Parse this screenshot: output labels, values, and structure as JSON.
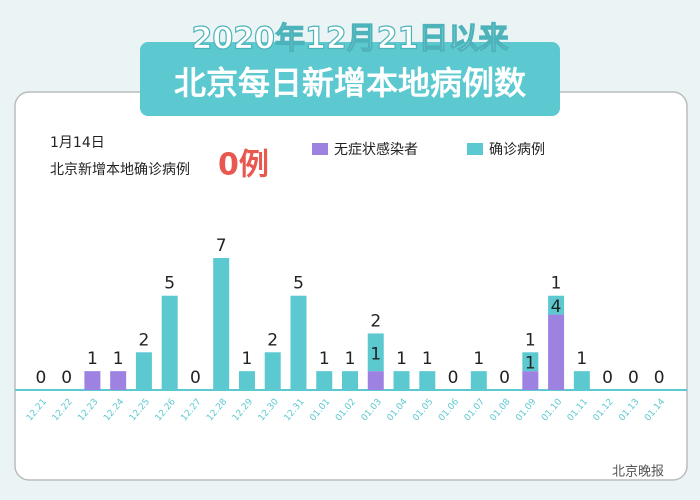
{
  "chart_data": {
    "type": "stacked-bar",
    "title": "2020年12月21日以来",
    "subtitle": "北京每日新增本地病例数",
    "annotations": [
      "1月14日",
      "北京新增本地确诊病例",
      "0例"
    ],
    "watermark": "北京晚报",
    "categories": [
      "12.21",
      "12.22",
      "12.23",
      "12.24",
      "12.25",
      "12.26",
      "12.27",
      "12.28",
      "12.29",
      "12.30",
      "12.31",
      "01.01",
      "01.02",
      "01.03",
      "01.04",
      "01.05",
      "01.06",
      "01.07",
      "01.08",
      "01.09",
      "01.10",
      "01.11",
      "01.12",
      "01.13",
      "01.14"
    ],
    "series": [
      {
        "name": "无症状感染者",
        "color": "#9d82e2",
        "values": [
          0,
          0,
          1,
          1,
          0,
          0,
          0,
          0,
          0,
          0,
          0,
          0,
          0,
          1,
          0,
          0,
          0,
          0,
          0,
          1,
          4,
          0,
          0,
          0,
          0
        ]
      },
      {
        "name": "确诊病例",
        "color": "#5cc9d1",
        "values": [
          0,
          0,
          0,
          0,
          2,
          5,
          0,
          7,
          1,
          2,
          5,
          1,
          1,
          2,
          1,
          1,
          0,
          1,
          0,
          1,
          1,
          1,
          0,
          0,
          0
        ]
      }
    ],
    "ylim": [
      0,
      7
    ]
  }
}
